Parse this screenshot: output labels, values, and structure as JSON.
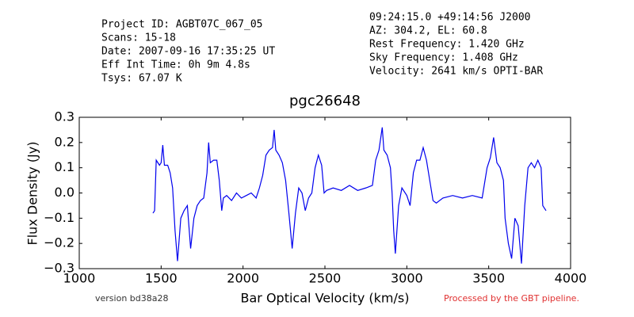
{
  "chart_data": {
    "type": "line",
    "title": "pgc26648",
    "header_left": [
      "Project ID: AGBT07C_067_05",
      "Scans: 15-18",
      "Date: 2007-09-16 17:35:25 UT",
      "Eff Int Time: 0h 9m 4.8s",
      "Tsys: 67.07 K"
    ],
    "header_right": [
      "09:24:15.0 +49:14:56 J2000",
      "AZ: 304.2, EL: 60.8",
      "Rest Frequency:   1.420 GHz",
      "Sky Frequency:    1.408 GHz",
      "Velocity: 2641 km/s OPTI-BAR"
    ],
    "xlabel": "Bar Optical Velocity (km/s)",
    "ylabel": "Flux Density (Jy)",
    "footer_left": "version bd38a28",
    "footer_right": "Processed by the GBT pipeline.",
    "xlim": [
      1000,
      4000
    ],
    "xticks": [
      1000,
      1500,
      2000,
      2500,
      3000,
      3500,
      4000
    ],
    "ylim": [
      -0.3,
      0.3
    ],
    "yticks": [
      {
        "value": -0.3,
        "label": "−0.3"
      },
      {
        "value": -0.2,
        "label": "−0.2"
      },
      {
        "value": -0.1,
        "label": "−0.1"
      },
      {
        "value": 0,
        "label": "0.0"
      },
      {
        "value": 0.1,
        "label": "0.1"
      },
      {
        "value": 0.2,
        "label": "0.2"
      },
      {
        "value": 0.3,
        "label": "0.3"
      }
    ],
    "grid": false,
    "series": [
      {
        "color": "#0000ee",
        "x": [
          1450,
          1460,
          1470,
          1490,
          1500,
          1510,
          1520,
          1540,
          1555,
          1570,
          1585,
          1600,
          1620,
          1640,
          1660,
          1680,
          1700,
          1720,
          1740,
          1760,
          1780,
          1790,
          1800,
          1820,
          1840,
          1855,
          1870,
          1880,
          1900,
          1930,
          1960,
          1990,
          2020,
          2050,
          2080,
          2100,
          2120,
          2140,
          2160,
          2180,
          2190,
          2200,
          2220,
          2240,
          2260,
          2280,
          2300,
          2320,
          2340,
          2360,
          2380,
          2400,
          2420,
          2440,
          2460,
          2480,
          2495,
          2510,
          2550,
          2600,
          2650,
          2700,
          2750,
          2790,
          2810,
          2830,
          2850,
          2860,
          2880,
          2900,
          2910,
          2920,
          2930,
          2950,
          2970,
          3000,
          3020,
          3040,
          3060,
          3080,
          3100,
          3120,
          3140,
          3160,
          3180,
          3220,
          3280,
          3340,
          3400,
          3460,
          3490,
          3510,
          3530,
          3550,
          3570,
          3590,
          3600,
          3620,
          3640,
          3660,
          3680,
          3700,
          3720,
          3740,
          3760,
          3780,
          3800,
          3820,
          3830,
          3850
        ],
        "values": [
          -0.08,
          -0.07,
          0.13,
          0.11,
          0.12,
          0.19,
          0.11,
          0.11,
          0.08,
          0.02,
          -0.15,
          -0.27,
          -0.1,
          -0.07,
          -0.05,
          -0.22,
          -0.1,
          -0.05,
          -0.03,
          -0.02,
          0.08,
          0.2,
          0.12,
          0.13,
          0.13,
          0.05,
          -0.07,
          -0.02,
          -0.01,
          -0.03,
          0.0,
          -0.02,
          -0.01,
          0.0,
          -0.02,
          0.02,
          0.07,
          0.15,
          0.17,
          0.18,
          0.25,
          0.17,
          0.15,
          0.12,
          0.05,
          -0.08,
          -0.22,
          -0.08,
          0.02,
          0.0,
          -0.07,
          -0.02,
          0.0,
          0.1,
          0.15,
          0.11,
          0.0,
          0.01,
          0.02,
          0.01,
          0.03,
          0.01,
          0.02,
          0.03,
          0.13,
          0.17,
          0.26,
          0.17,
          0.15,
          0.1,
          0.0,
          -0.15,
          -0.24,
          -0.05,
          0.02,
          -0.01,
          -0.05,
          0.08,
          0.13,
          0.13,
          0.18,
          0.13,
          0.05,
          -0.03,
          -0.04,
          -0.02,
          -0.01,
          -0.02,
          -0.01,
          -0.02,
          0.1,
          0.14,
          0.22,
          0.12,
          0.1,
          0.05,
          -0.1,
          -0.2,
          -0.26,
          -0.1,
          -0.13,
          -0.28,
          -0.05,
          0.1,
          0.12,
          0.1,
          0.13,
          0.1,
          -0.05,
          -0.07
        ]
      }
    ]
  }
}
